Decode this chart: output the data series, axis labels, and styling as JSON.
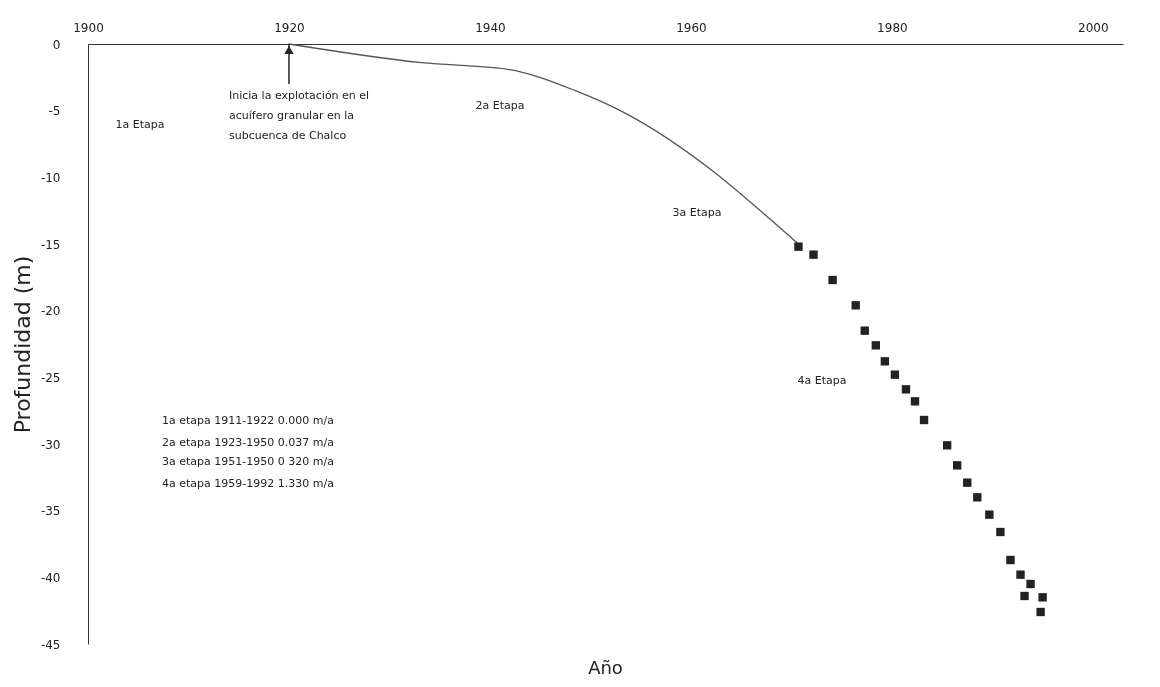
{
  "chart_data": {
    "type": "line",
    "xlabel": "Año",
    "ylabel": "Profundidad (m)",
    "xlim": [
      1900,
      2003
    ],
    "xticks": [
      1900,
      1920,
      1940,
      1960,
      1980,
      2000
    ],
    "ylim": [
      -45,
      0
    ],
    "yticks": [
      0,
      -5,
      -10,
      -15,
      -20,
      -25,
      -30,
      -35,
      -40,
      -45
    ],
    "grid": false,
    "series": [
      {
        "color": "#555555",
        "marker": "none",
        "x": [
          1920,
          1933.2,
          1941.8,
          1948.5,
          1953.5,
          1962.3,
          1966.6,
          1970.7
        ],
        "values": [
          0,
          -1.4,
          -1.9,
          -3.5,
          -5.2,
          -9.6,
          -12.3,
          -15.0
        ]
      },
      {
        "type": "scatter",
        "color": "#222222",
        "marker": "square",
        "x": [
          1970.7,
          1972.2,
          1974.1,
          1976.4,
          1977.3,
          1978.4,
          1979.3,
          1980.3,
          1981.4,
          1982.3,
          1983.2,
          1985.5,
          1986.5,
          1987.5,
          1988.5,
          1989.7,
          1990.8,
          1991.8,
          1992.8,
          1993.8,
          1993.2,
          1995.0,
          1994.8
        ],
        "values": [
          -15.2,
          -15.8,
          -17.7,
          -19.6,
          -21.5,
          -22.6,
          -23.8,
          -24.8,
          -25.9,
          -26.8,
          -28.2,
          -30.1,
          -31.6,
          -32.9,
          -34.0,
          -35.3,
          -36.6,
          -38.7,
          -39.8,
          -40.5,
          -41.4,
          -41.5,
          -42.6
        ]
      }
    ],
    "annotations": [
      "1a Etapa",
      "2a Etapa",
      "3a Etapa",
      "4a Etapa",
      {
        "text": "Inicia la explotación en el\nacuífero granular en la\nsubcuenca de Chalco",
        "x": 1920,
        "y": 0
      },
      "1a etapa   1911-1922   0.000 m/a",
      "2a etapa  1923-1950  0.037 m/a",
      "3a etapa 1951-1950     0 320 m/a",
      "4a etapa 1959-1992     1.330 m/a"
    ]
  }
}
